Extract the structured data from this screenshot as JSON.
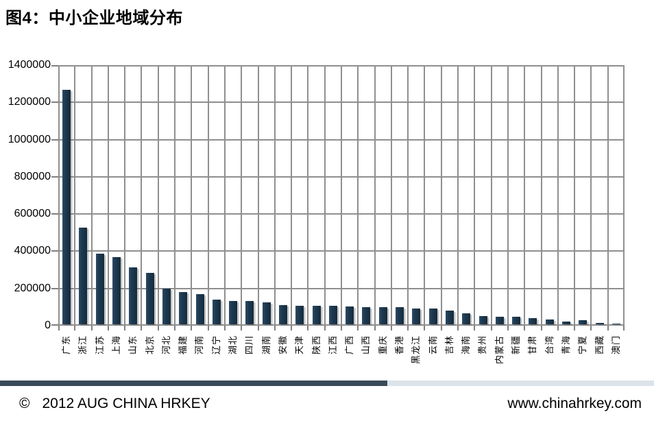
{
  "title": "图4：中小企业地域分布",
  "footer": {
    "copyright_symbol": "©",
    "copyright_text": "2012 AUG CHINA HRKEY",
    "website": "www.chinahrkey.com"
  },
  "colors": {
    "bar": "#1F3B52",
    "bar_highlight": "#2E4D68",
    "bar_dark": "#152B3D",
    "gridline": "#8F8F8F",
    "axis": "#7F7F7F",
    "divider_dark": "#3A4A57",
    "divider_light": "#DCE3EA",
    "text": "#000000"
  },
  "chart_data": {
    "type": "bar",
    "title": "图4：中小企业地域分布",
    "xlabel": "",
    "ylabel": "",
    "grid": true,
    "legend": false,
    "ylim": [
      0,
      1400000
    ],
    "ytick_interval": 200000,
    "yticks": [
      0,
      200000,
      400000,
      600000,
      800000,
      1000000,
      1200000,
      1400000
    ],
    "ytick_labels": [
      "0",
      "200000",
      "400000",
      "600000",
      "800000",
      "1000000",
      "1200000",
      "1400000"
    ],
    "categories": [
      "广东",
      "浙江",
      "江苏",
      "上海",
      "山东",
      "北京",
      "河北",
      "福建",
      "河南",
      "辽宁",
      "湖北",
      "四川",
      "湖南",
      "安徽",
      "天津",
      "陕西",
      "江西",
      "广西",
      "山西",
      "重庆",
      "香港",
      "黑龙江",
      "云南",
      "吉林",
      "海南",
      "贵州",
      "内蒙古",
      "新疆",
      "甘肃",
      "台湾",
      "青海",
      "宁夏",
      "西藏",
      "澳门"
    ],
    "values": [
      1260000,
      520000,
      380000,
      360000,
      305000,
      275000,
      190000,
      172000,
      162000,
      133000,
      126000,
      125000,
      118000,
      104000,
      101000,
      100000,
      99000,
      95000,
      93000,
      92000,
      91000,
      86000,
      84000,
      72000,
      58000,
      44000,
      42000,
      42000,
      32000,
      25000,
      15000,
      22000,
      6000,
      2000
    ]
  },
  "divider_dark_width_pct": 59.2
}
